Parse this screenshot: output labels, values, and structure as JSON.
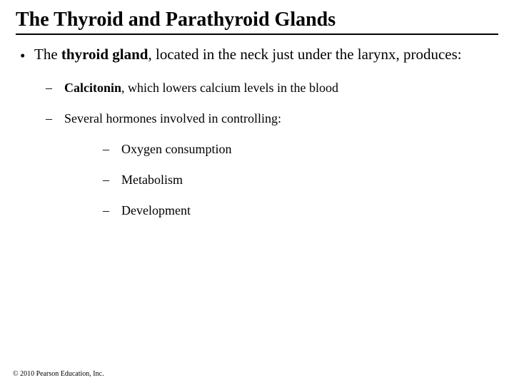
{
  "title": "The Thyroid and Parathyroid Glands",
  "intro": {
    "prefix": "The ",
    "bold": "thyroid gland",
    "rest": ", located in the neck just under the larynx, produces:"
  },
  "sub1": {
    "bold": "Calcitonin",
    "rest": ", which lowers calcium levels in the blood"
  },
  "sub2": "Several hormones involved in controlling:",
  "subsub": {
    "a": "Oxygen consumption",
    "b": "Metabolism",
    "c": "Development"
  },
  "copyright": "© 2010 Pearson Education, Inc."
}
